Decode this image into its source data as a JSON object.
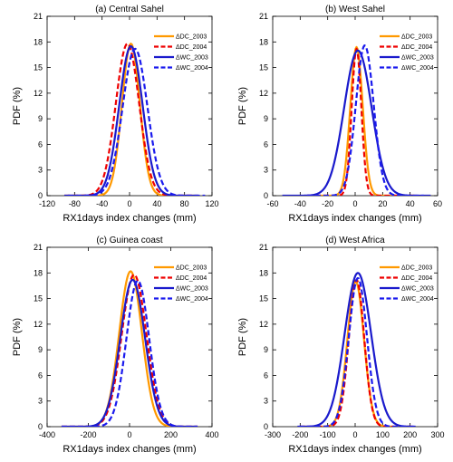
{
  "colors": {
    "dc_2003": "#ff9900",
    "dc_2004": "#ee0000",
    "wc_2003": "#1a1acc",
    "wc_2004": "#1a1aee"
  },
  "chart_data": [
    {
      "type": "line",
      "title": "(a) Central Sahel",
      "xlabel": "RX1days index changes (mm)",
      "ylabel": "PDF (%)",
      "xlim": [
        -120,
        120
      ],
      "ylim": [
        0,
        21
      ],
      "xticks": [
        -120,
        -80,
        -40,
        0,
        40,
        80,
        120
      ],
      "yticks": [
        0,
        3,
        6,
        9,
        12,
        15,
        18,
        21
      ],
      "legend_position": "top-right",
      "series": [
        {
          "name": "ΔDC_2003",
          "color": "#ff9900",
          "dash": "solid",
          "mean": 2,
          "sd": 13,
          "peak": 17.8,
          "xrange": [
            -90,
            100
          ]
        },
        {
          "name": "ΔDC_2004",
          "color": "#ee0000",
          "dash": "dashed",
          "mean": -3,
          "sd": 17,
          "peak": 17.8,
          "xrange": [
            -95,
            95
          ]
        },
        {
          "name": "ΔWC_2003",
          "color": "#1a1acc",
          "dash": "solid",
          "mean": 2,
          "sd": 17,
          "peak": 17.5,
          "xrange": [
            -95,
            100
          ]
        },
        {
          "name": "ΔWC_2004",
          "color": "#1a1aee",
          "dash": "dashed",
          "mean": 8,
          "sd": 18,
          "peak": 17.2,
          "xrange": [
            -90,
            110
          ]
        }
      ]
    },
    {
      "type": "line",
      "title": "(b) West Sahel",
      "xlabel": "RX1days index changes (mm)",
      "ylabel": "PDF (%)",
      "xlim": [
        -60,
        60
      ],
      "ylim": [
        0,
        21
      ],
      "xticks": [
        -60,
        -40,
        -20,
        0,
        20,
        40,
        60
      ],
      "yticks": [
        0,
        3,
        6,
        9,
        12,
        15,
        18,
        21
      ],
      "legend_position": "top-right",
      "series": [
        {
          "name": "ΔDC_2003",
          "color": "#ff9900",
          "dash": "solid",
          "mean": 1,
          "sd": 4.5,
          "peak": 17.4,
          "xrange": [
            -35,
            45
          ]
        },
        {
          "name": "ΔDC_2004",
          "color": "#ee0000",
          "dash": "dashed",
          "mean": 1,
          "sd": 3.5,
          "peak": 17.2,
          "xrange": [
            -35,
            45
          ]
        },
        {
          "name": "ΔWC_2003",
          "color": "#1a1acc",
          "dash": "solid",
          "mean": 2,
          "sd": 10,
          "peak": 17.0,
          "xrange": [
            -53,
            55
          ]
        },
        {
          "name": "ΔWC_2004",
          "color": "#1a1aee",
          "dash": "dashed",
          "mean": 7,
          "sd": 6.5,
          "peak": 17.6,
          "xrange": [
            -35,
            50
          ]
        }
      ]
    },
    {
      "type": "line",
      "title": "(c) Guinea coast",
      "xlabel": "RX1days index changes (mm)",
      "ylabel": "PDF (%)",
      "xlim": [
        -400,
        400
      ],
      "ylim": [
        0,
        21
      ],
      "xticks": [
        -400,
        -200,
        0,
        200,
        400
      ],
      "yticks": [
        0,
        3,
        6,
        9,
        12,
        15,
        18,
        21
      ],
      "legend_position": "top-right",
      "series": [
        {
          "name": "ΔDC_2003",
          "color": "#ff9900",
          "dash": "solid",
          "mean": 5,
          "sd": 55,
          "peak": 18.2,
          "xrange": [
            -330,
            330
          ]
        },
        {
          "name": "ΔDC_2004",
          "color": "#ee0000",
          "dash": "dashed",
          "mean": 22,
          "sd": 60,
          "peak": 17.8,
          "xrange": [
            -330,
            330
          ]
        },
        {
          "name": "ΔWC_2003",
          "color": "#1a1acc",
          "dash": "solid",
          "mean": 15,
          "sd": 60,
          "peak": 17.2,
          "xrange": [
            -330,
            330
          ]
        },
        {
          "name": "ΔWC_2004",
          "color": "#1a1aee",
          "dash": "dashed",
          "mean": 40,
          "sd": 55,
          "peak": 17.1,
          "xrange": [
            -330,
            330
          ]
        }
      ]
    },
    {
      "type": "line",
      "title": "(d) West Africa",
      "xlabel": "RX1days index changes (mm)",
      "ylabel": "PDF (%)",
      "xlim": [
        -300,
        300
      ],
      "ylim": [
        0,
        21
      ],
      "xticks": [
        -300,
        -200,
        -100,
        0,
        100,
        200,
        300
      ],
      "yticks": [
        0,
        3,
        6,
        9,
        12,
        15,
        18,
        21
      ],
      "legend_position": "top-right",
      "series": [
        {
          "name": "ΔDC_2003",
          "color": "#ff9900",
          "dash": "solid",
          "mean": 2,
          "sd": 30,
          "peak": 17.0,
          "xrange": [
            -200,
            210
          ]
        },
        {
          "name": "ΔDC_2004",
          "color": "#ee0000",
          "dash": "dashed",
          "mean": 5,
          "sd": 28,
          "peak": 17.2,
          "xrange": [
            -200,
            210
          ]
        },
        {
          "name": "ΔWC_2003",
          "color": "#1a1acc",
          "dash": "solid",
          "mean": 10,
          "sd": 48,
          "peak": 18.0,
          "xrange": [
            -210,
            220
          ]
        },
        {
          "name": "ΔWC_2004",
          "color": "#1a1aee",
          "dash": "dashed",
          "mean": 10,
          "sd": 33,
          "peak": 17.4,
          "xrange": [
            -205,
            215
          ]
        }
      ]
    }
  ]
}
